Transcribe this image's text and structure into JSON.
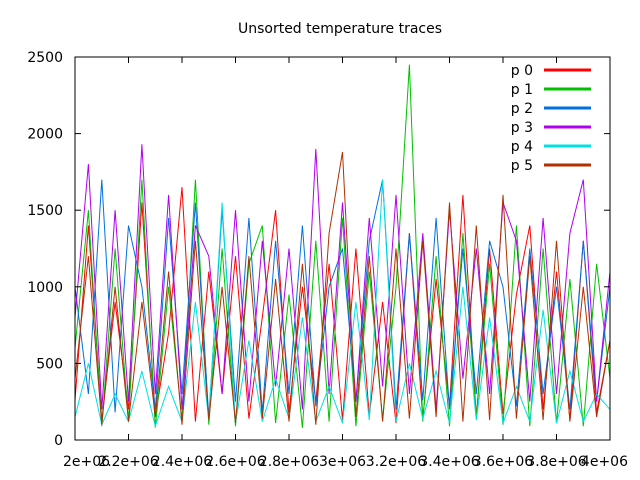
{
  "chart_data": {
    "type": "line",
    "title": "Unsorted temperature traces",
    "xlabel": "",
    "ylabel": "",
    "xlim": [
      2000000,
      4000000
    ],
    "ylim": [
      0,
      2500
    ],
    "x_ticks": [
      2000000,
      2200000,
      2400000,
      2600000,
      2800000,
      3000000,
      3200000,
      3400000,
      3600000,
      3800000,
      4000000
    ],
    "x_tick_labels": [
      "2e+06",
      "2.2e+06",
      "2.4e+06",
      "2.6e+06",
      "2.8e+06",
      "3e+06",
      "3.2e+06",
      "3.4e+06",
      "3.6e+06",
      "3.8e+06",
      "4e+06"
    ],
    "y_ticks": [
      0,
      500,
      1000,
      1500,
      2000,
      2500
    ],
    "y_tick_labels": [
      "0",
      "500",
      "1000",
      "1500",
      "2000",
      "2500"
    ],
    "grid": false,
    "legend_position": "top-right",
    "series": [
      {
        "name": "p 0",
        "color": "#ff0000",
        "x": [
          2000000,
          2050000,
          2100000,
          2150000,
          2200000,
          2250000,
          2300000,
          2350000,
          2400000,
          2450000,
          2500000,
          2550000,
          2600000,
          2650000,
          2700000,
          2750000,
          2800000,
          2850000,
          2900000,
          2950000,
          3000000,
          3050000,
          3100000,
          3150000,
          3200000,
          3250000,
          3300000,
          3350000,
          3400000,
          3450000,
          3500000,
          3550000,
          3600000,
          3650000,
          3700000,
          3750000,
          3800000,
          3850000,
          3900000,
          3950000,
          4000000
        ],
        "y": [
          260,
          1400,
          130,
          900,
          200,
          1550,
          150,
          700,
          1650,
          120,
          1100,
          300,
          1200,
          140,
          800,
          1500,
          180,
          1000,
          250,
          1150,
          130,
          1250,
          160,
          900,
          110,
          1350,
          140,
          1050,
          220,
          1600,
          150,
          1250,
          170,
          950,
          1400,
          200,
          1100,
          130,
          1300,
          180,
          650
        ]
      },
      {
        "name": "p 1",
        "color": "#00c000",
        "x": [
          2000000,
          2050000,
          2100000,
          2150000,
          2200000,
          2250000,
          2300000,
          2350000,
          2400000,
          2450000,
          2500000,
          2550000,
          2600000,
          2650000,
          2700000,
          2750000,
          2800000,
          2850000,
          2900000,
          2950000,
          3000000,
          3050000,
          3100000,
          3150000,
          3200000,
          3250000,
          3300000,
          3350000,
          3400000,
          3450000,
          3500000,
          3550000,
          3600000,
          3650000,
          3700000,
          3750000,
          3800000,
          3850000,
          3900000,
          3950000,
          4000000
        ],
        "y": [
          600,
          1500,
          90,
          1250,
          120,
          1700,
          80,
          1000,
          130,
          1700,
          100,
          1250,
          90,
          1150,
          1400,
          110,
          950,
          80,
          1300,
          120,
          1450,
          90,
          1100,
          130,
          1000,
          2450,
          120,
          1200,
          90,
          1350,
          150,
          1150,
          100,
          1400,
          90,
          1250,
          110,
          1050,
          90,
          1150,
          400
        ]
      },
      {
        "name": "p 2",
        "color": "#0070e0",
        "x": [
          2000000,
          2050000,
          2100000,
          2150000,
          2200000,
          2250000,
          2300000,
          2350000,
          2400000,
          2450000,
          2500000,
          2550000,
          2600000,
          2650000,
          2700000,
          2750000,
          2800000,
          2850000,
          2900000,
          2950000,
          3000000,
          3050000,
          3100000,
          3150000,
          3200000,
          3250000,
          3300000,
          3350000,
          3400000,
          3450000,
          3500000,
          3550000,
          3600000,
          3650000,
          3700000,
          3750000,
          3800000,
          3850000,
          3900000,
          3950000,
          4000000
        ],
        "y": [
          1000,
          300,
          1700,
          180,
          1400,
          1000,
          200,
          1450,
          300,
          1550,
          150,
          1500,
          250,
          1450,
          180,
          1300,
          300,
          1400,
          220,
          1000,
          1250,
          250,
          1300,
          1700,
          200,
          1350,
          260,
          1450,
          200,
          1250,
          300,
          1300,
          1000,
          220,
          1250,
          300,
          1000,
          200,
          1300,
          250,
          1000
        ]
      },
      {
        "name": "p 3",
        "color": "#b000f0",
        "x": [
          2000000,
          2050000,
          2100000,
          2150000,
          2200000,
          2250000,
          2300000,
          2350000,
          2400000,
          2450000,
          2500000,
          2550000,
          2600000,
          2650000,
          2700000,
          2750000,
          2800000,
          2850000,
          2900000,
          2950000,
          3000000,
          3050000,
          3100000,
          3150000,
          3200000,
          3250000,
          3300000,
          3350000,
          3400000,
          3450000,
          3500000,
          3550000,
          3600000,
          3650000,
          3700000,
          3750000,
          3800000,
          3850000,
          3900000,
          3950000,
          4000000
        ],
        "y": [
          800,
          1800,
          200,
          1500,
          250,
          1930,
          300,
          1600,
          200,
          1400,
          1200,
          300,
          1500,
          250,
          1300,
          350,
          1250,
          200,
          1900,
          300,
          1550,
          250,
          1450,
          350,
          1600,
          300,
          1350,
          200,
          1500,
          400,
          1250,
          300,
          1550,
          1300,
          250,
          1450,
          300,
          1350,
          1700,
          250,
          1100
        ]
      },
      {
        "name": "p 4",
        "color": "#00e0e0",
        "x": [
          2000000,
          2050000,
          2100000,
          2150000,
          2200000,
          2250000,
          2300000,
          2350000,
          2400000,
          2450000,
          2500000,
          2550000,
          2600000,
          2650000,
          2700000,
          2750000,
          2800000,
          2850000,
          2900000,
          2950000,
          3000000,
          3050000,
          3100000,
          3150000,
          3200000,
          3250000,
          3300000,
          3350000,
          3400000,
          3450000,
          3500000,
          3550000,
          3600000,
          3650000,
          3700000,
          3750000,
          3800000,
          3850000,
          3900000,
          3950000,
          4000000
        ],
        "y": [
          150,
          500,
          100,
          300,
          120,
          450,
          90,
          350,
          120,
          900,
          130,
          1550,
          110,
          650,
          120,
          400,
          140,
          800,
          120,
          350,
          110,
          900,
          130,
          1700,
          120,
          500,
          140,
          450,
          110,
          1000,
          130,
          800,
          110,
          350,
          120,
          850,
          110,
          450,
          120,
          300,
          200
        ]
      },
      {
        "name": "p 5",
        "color": "#b03000",
        "x": [
          2000000,
          2050000,
          2100000,
          2150000,
          2200000,
          2250000,
          2300000,
          2350000,
          2400000,
          2450000,
          2500000,
          2550000,
          2600000,
          2650000,
          2700000,
          2750000,
          2800000,
          2850000,
          2900000,
          2950000,
          3000000,
          3050000,
          3100000,
          3150000,
          3200000,
          3250000,
          3300000,
          3350000,
          3400000,
          3450000,
          3500000,
          3550000,
          3600000,
          3650000,
          3700000,
          3750000,
          3800000,
          3850000,
          3900000,
          3950000,
          4000000
        ],
        "y": [
          400,
          1200,
          100,
          1000,
          120,
          900,
          150,
          1100,
          100,
          1300,
          130,
          1000,
          110,
          1200,
          140,
          1050,
          120,
          1150,
          100,
          1350,
          1880,
          150,
          1200,
          120,
          1250,
          140,
          1300,
          150,
          1550,
          120,
          1400,
          130,
          1600,
          140,
          1200,
          130,
          1300,
          120,
          1000,
          150,
          650
        ]
      }
    ]
  }
}
